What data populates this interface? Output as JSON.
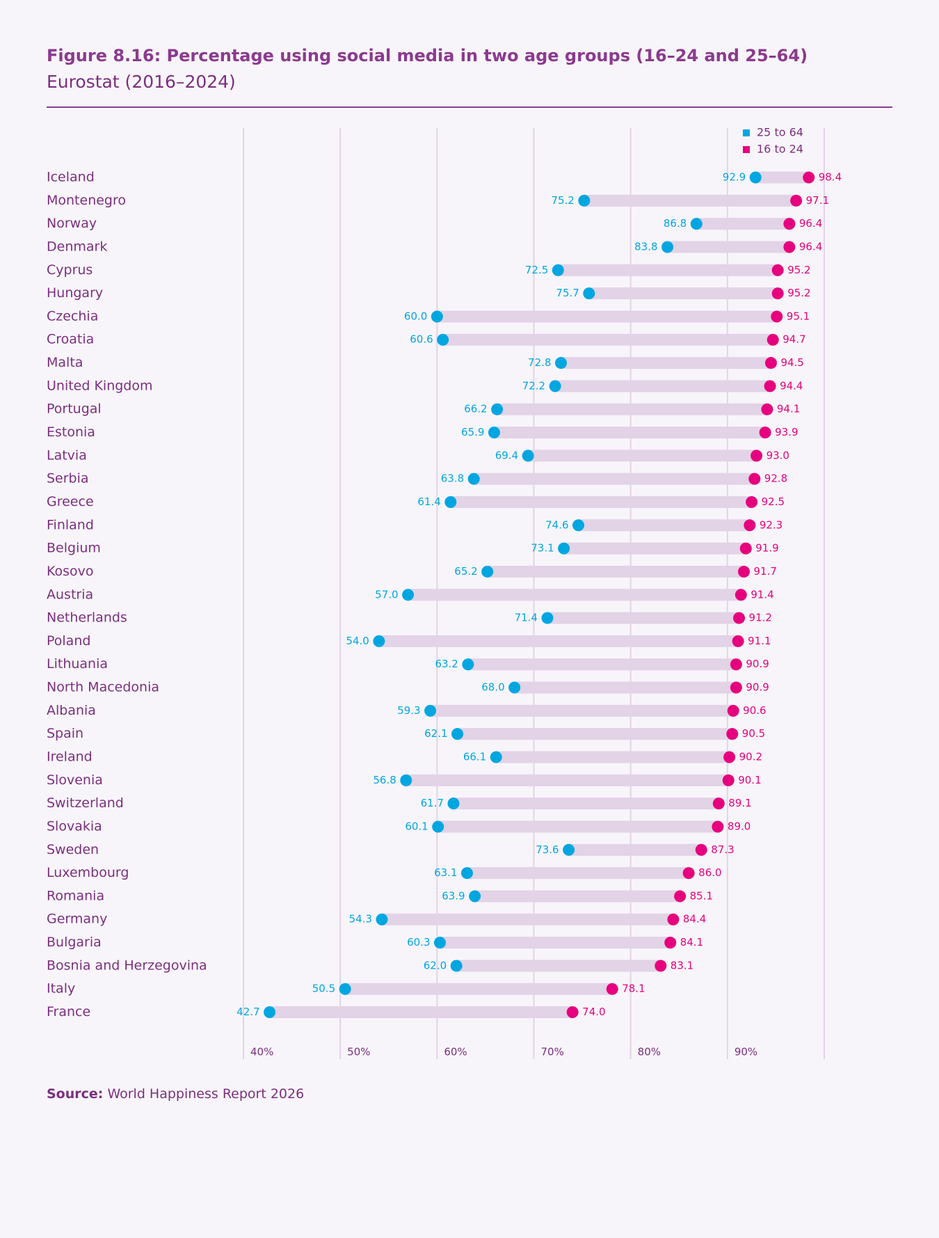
{
  "chart_data": {
    "type": "dumbbell",
    "title": "Figure 8.16: Percentage using social media in two age groups (16–24 and 25–64)",
    "subtitle": "Eurostat (2016–2024)",
    "source_label": "Source:",
    "source": "World Happiness Report 2026",
    "categories": [
      "Iceland",
      "Montenegro",
      "Norway",
      "Denmark",
      "Cyprus",
      "Hungary",
      "Czechia",
      "Croatia",
      "Malta",
      "United Kingdom",
      "Portugal",
      "Estonia",
      "Latvia",
      "Serbia",
      "Greece",
      "Finland",
      "Belgium",
      "Kosovo",
      "Austria",
      "Netherlands",
      "Poland",
      "Lithuania",
      "North Macedonia",
      "Albania",
      "Spain",
      "Ireland",
      "Slovenia",
      "Switzerland",
      "Slovakia",
      "Sweden",
      "Luxembourg",
      "Romania",
      "Germany",
      "Bulgaria",
      "Bosnia and Herzegovina",
      "Italy",
      "France"
    ],
    "series": [
      {
        "name": "25 to 64",
        "color": "#00a6e0",
        "values": [
          92.9,
          75.2,
          86.8,
          83.8,
          72.5,
          75.7,
          60.0,
          60.6,
          72.8,
          72.2,
          66.2,
          65.9,
          69.4,
          63.8,
          61.4,
          74.6,
          73.1,
          65.2,
          57.0,
          71.4,
          54.0,
          63.2,
          68.0,
          59.3,
          62.1,
          66.1,
          56.8,
          61.7,
          60.1,
          73.6,
          63.1,
          63.9,
          54.3,
          60.3,
          62.0,
          50.5,
          42.7
        ],
        "value_labels": [
          "92.9",
          "75.2",
          "86.8",
          "83.8",
          "72.5",
          "75.7",
          "60.0",
          "60.6",
          "72.8",
          "72.2",
          "66.2",
          "65.9",
          "69.4",
          "63.8",
          "61.4",
          "74.6",
          "73.1",
          "65.2",
          "57.0",
          "71.4",
          "54.0",
          "63.2",
          "68.0",
          "59.3",
          "62.1",
          "66.1",
          "56.8",
          "61.7",
          "60.1",
          "73.6",
          "63.1",
          "63.9",
          "54.3",
          "60.3",
          "62.0",
          "50.5",
          "42.7"
        ]
      },
      {
        "name": "16 to 24",
        "color": "#e6007e",
        "values": [
          98.4,
          97.1,
          96.4,
          96.4,
          95.2,
          95.2,
          95.1,
          94.7,
          94.5,
          94.4,
          94.1,
          93.9,
          93.0,
          92.8,
          92.5,
          92.3,
          91.9,
          91.7,
          91.4,
          91.2,
          91.1,
          90.9,
          90.9,
          90.6,
          90.5,
          90.2,
          90.1,
          89.1,
          89.0,
          87.3,
          86.0,
          85.1,
          84.4,
          84.1,
          83.1,
          78.1,
          74.0
        ],
        "value_labels": [
          "98.4",
          "97.1",
          "96.4",
          "96.4",
          "95.2",
          "95.2",
          "95.1",
          "94.7",
          "94.5",
          "94.4",
          "94.1",
          "93.9",
          "93.0",
          "92.8",
          "92.5",
          "92.3",
          "91.9",
          "91.7",
          "91.4",
          "91.2",
          "91.1",
          "90.9",
          "90.9",
          "90.6",
          "90.5",
          "90.2",
          "90.1",
          "89.1",
          "89.0",
          "87.3",
          "86.0",
          "85.1",
          "84.4",
          "84.1",
          "83.1",
          "78.1",
          "74.0"
        ]
      }
    ],
    "xlim": [
      40,
      100
    ],
    "xticks": [
      {
        "value": 40,
        "label": "40%"
      },
      {
        "value": 50,
        "label": "50%"
      },
      {
        "value": 60,
        "label": "60%"
      },
      {
        "value": 70,
        "label": "70%"
      },
      {
        "value": 80,
        "label": "80%"
      },
      {
        "value": 90,
        "label": "90%"
      }
    ],
    "grid": true,
    "range_color": "#e2d3e6",
    "legend": "top-right"
  }
}
